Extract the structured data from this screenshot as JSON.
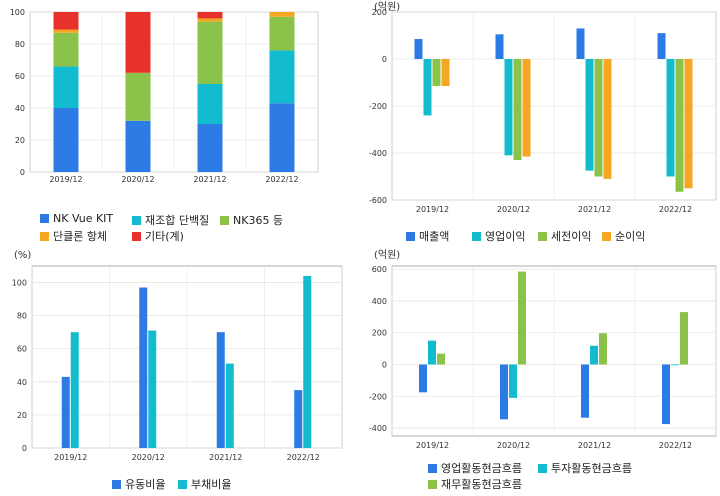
{
  "colors": {
    "blue": "#2c7be5",
    "cyan": "#12bcce",
    "green": "#8bc34a",
    "orange": "#f5a623",
    "red": "#e8312a",
    "grid": "#e6e6e6",
    "axis": "#999999"
  },
  "chart_data": [
    {
      "id": "sales-mix",
      "type": "bar",
      "stacked": true,
      "categories": [
        "2019/12",
        "2020/12",
        "2021/12",
        "2022/12"
      ],
      "ylim": [
        0,
        100
      ],
      "yticks": [
        0,
        20,
        40,
        60,
        80,
        100
      ],
      "unit": "",
      "series": [
        {
          "name": "NK Vue KIT",
          "color": "#2c7be5",
          "values": [
            40,
            32,
            30,
            43
          ]
        },
        {
          "name": "재조합 단백질",
          "color": "#12bcce",
          "values": [
            26,
            0,
            25,
            33
          ]
        },
        {
          "name": "NK365 등",
          "color": "#8bc34a",
          "values": [
            21,
            30,
            39,
            21
          ]
        },
        {
          "name": "단클론 항체",
          "color": "#f5a623",
          "values": [
            2,
            0,
            2,
            3
          ]
        },
        {
          "name": "기타(계)",
          "color": "#e8312a",
          "values": [
            11,
            38,
            4,
            0
          ]
        }
      ]
    },
    {
      "id": "profit",
      "type": "bar",
      "categories": [
        "2019/12",
        "2020/12",
        "2021/12",
        "2022/12"
      ],
      "ylim": [
        -600,
        200
      ],
      "yticks": [
        -600,
        -400,
        -200,
        0,
        200
      ],
      "unit": "(억원)",
      "series": [
        {
          "name": "매출액",
          "color": "#2c7be5",
          "values": [
            85,
            105,
            130,
            110
          ]
        },
        {
          "name": "영업이익",
          "color": "#12bcce",
          "values": [
            -240,
            -410,
            -475,
            -500
          ]
        },
        {
          "name": "세전이익",
          "color": "#8bc34a",
          "values": [
            -115,
            -430,
            -500,
            -565
          ]
        },
        {
          "name": "순이익",
          "color": "#f5a623",
          "values": [
            -115,
            -415,
            -510,
            -550
          ]
        }
      ]
    },
    {
      "id": "ratios",
      "type": "bar",
      "categories": [
        "2019/12",
        "2020/12",
        "2021/12",
        "2022/12"
      ],
      "ylim": [
        0,
        110
      ],
      "yticks": [
        0,
        20,
        40,
        60,
        80,
        100
      ],
      "unit": "(%)",
      "series": [
        {
          "name": "유동비율",
          "color": "#2c7be5",
          "values": [
            43,
            97,
            70,
            35
          ]
        },
        {
          "name": "부채비율",
          "color": "#12bcce",
          "values": [
            70,
            71,
            51,
            104
          ]
        }
      ]
    },
    {
      "id": "cashflow",
      "type": "bar",
      "categories": [
        "2019/12",
        "2020/12",
        "2021/12",
        "2022/12"
      ],
      "ylim": [
        -450,
        620
      ],
      "yticks": [
        -400,
        -200,
        0,
        200,
        400,
        600
      ],
      "unit": "(억원)",
      "series": [
        {
          "name": "영업활동현금흐름",
          "color": "#2c7be5",
          "values": [
            -175,
            -345,
            -335,
            -375
          ]
        },
        {
          "name": "투자활동현금흐름",
          "color": "#12bcce",
          "values": [
            150,
            -210,
            118,
            -5
          ]
        },
        {
          "name": "재무활동현금흐름",
          "color": "#8bc34a",
          "values": [
            68,
            585,
            197,
            330
          ]
        }
      ]
    }
  ]
}
